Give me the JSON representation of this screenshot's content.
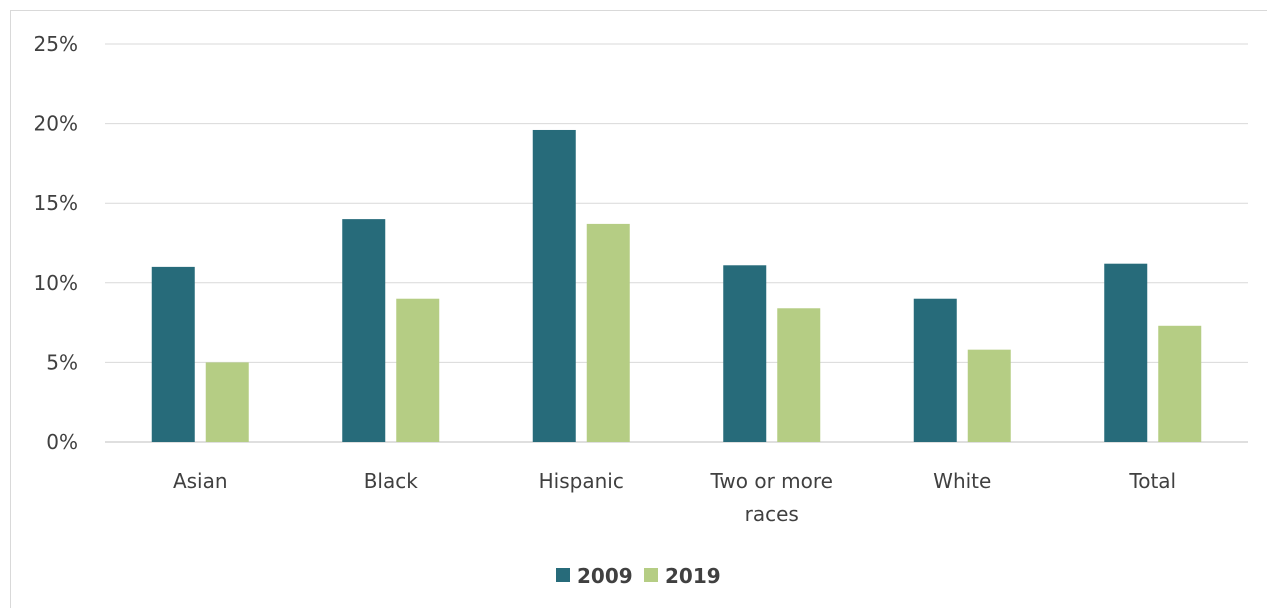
{
  "chart_data": {
    "type": "bar",
    "categories": [
      "Asian",
      "Black",
      "Hispanic",
      "Two or more races",
      "White",
      "Total"
    ],
    "series": [
      {
        "name": "2009",
        "color": "#276b7a",
        "values": [
          11.0,
          14.0,
          19.6,
          11.1,
          9.0,
          11.2
        ]
      },
      {
        "name": "2019",
        "color": "#b5cd84",
        "values": [
          5.0,
          9.0,
          13.7,
          8.4,
          5.8,
          7.3
        ]
      }
    ],
    "ylim": [
      0,
      25
    ],
    "yticks": [
      0,
      5,
      10,
      15,
      20,
      25
    ],
    "ytick_labels": [
      "0%",
      "5%",
      "10%",
      "15%",
      "20%",
      "25%"
    ],
    "grid": true,
    "legend_position": "bottom",
    "title": "",
    "xlabel": "",
    "ylabel": ""
  }
}
